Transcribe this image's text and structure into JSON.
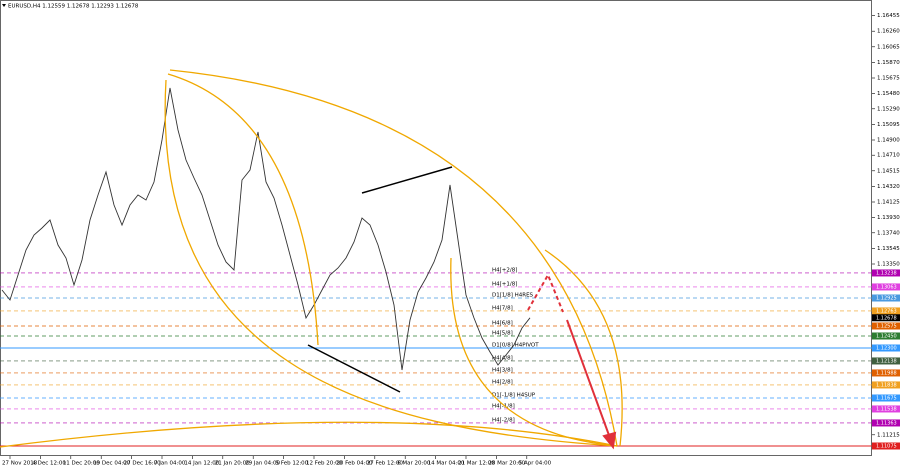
{
  "chart_data": {
    "type": "line",
    "title": "EURUSD,H4  1.12559 1.12678 1.12293 1.12678",
    "xlim": [
      -0.25,
      108.75
    ],
    "xticks": [
      {
        "value": 1,
        "label": "27 Nov 2018"
      },
      {
        "value": 4.8,
        "label": "4 Dec 12:00"
      },
      {
        "value": 8.6,
        "label": "11 Dec 20:00"
      },
      {
        "value": 12.4,
        "label": "19 Dec 04:00"
      },
      {
        "value": 16.2,
        "label": "27 Dec 16:00"
      },
      {
        "value": 20,
        "label": "7 Jan 04:00"
      },
      {
        "value": 23.8,
        "label": "14 Jan 12:00"
      },
      {
        "value": 27.6,
        "label": "21 Jan 20:00"
      },
      {
        "value": 31.4,
        "label": "29 Jan 04:00"
      },
      {
        "value": 35.2,
        "label": "5 Feb 12:00"
      },
      {
        "value": 39,
        "label": "12 Feb 20:00"
      },
      {
        "value": 42.8,
        "label": "20 Feb 04:00"
      },
      {
        "value": 46.6,
        "label": "27 Feb 12:00"
      },
      {
        "value": 50.4,
        "label": "6 Mar 20:00"
      },
      {
        "value": 54.2,
        "label": "14 Mar 04:00"
      },
      {
        "value": 58,
        "label": "21 Mar 12:00"
      },
      {
        "value": 61.8,
        "label": "28 Mar 20:00"
      },
      {
        "value": 65.6,
        "label": "5 Apr 04:00"
      }
    ],
    "ylim": [
      1.1095,
      1.1665
    ],
    "yticks": [
      1.16455,
      {
        "value": 1.1626,
        "label": "1.16260"
      },
      1.16065,
      {
        "value": 1.1587,
        "label": "1.15870"
      },
      1.15675,
      {
        "value": 1.1548,
        "label": "1.15480"
      },
      {
        "value": 1.1529,
        "label": "1.15290"
      },
      1.15095,
      {
        "value": 1.149,
        "label": "1.14900"
      },
      {
        "value": 1.1471,
        "label": "1.14710"
      },
      1.14515,
      {
        "value": 1.1432,
        "label": "1.14320"
      },
      1.14125,
      {
        "value": 1.1393,
        "label": "1.13930"
      },
      {
        "value": 1.1374,
        "label": "1.13740"
      },
      1.13545,
      {
        "value": 1.1335,
        "label": "1.13350"
      },
      1.11215
    ],
    "series": [
      {
        "color": "#333333",
        "values": [
          1.13025,
          1.129,
          1.13213,
          1.13525,
          1.13713,
          1.138,
          1.139,
          1.13588,
          1.13425,
          1.13088,
          1.134,
          1.139,
          1.14213,
          1.145,
          1.14088,
          1.13838,
          1.14088,
          1.14213,
          1.1415,
          1.14375,
          1.149,
          1.1555,
          1.15025,
          1.1465,
          1.14425,
          1.14213,
          1.139,
          1.13588,
          1.13375,
          1.13275,
          1.144,
          1.14525,
          1.15,
          1.14375,
          1.14175,
          1.13838,
          1.13463,
          1.13088,
          1.12675,
          1.12838,
          1.13025,
          1.13213,
          1.133,
          1.13425,
          1.13625,
          1.13925,
          1.13838,
          1.13588,
          1.1325,
          1.12838,
          1.12025,
          1.1265,
          1.13,
          1.13175,
          1.13375,
          1.1365,
          1.14338,
          1.1365,
          1.12963,
          1.12675,
          1.12425,
          1.1225,
          1.12088,
          1.12213,
          1.12338,
          1.1255,
          1.12678
        ]
      }
    ],
    "levels": [
      {
        "name": "H4[+2/8]",
        "value": 1.13238,
        "label": "1.13238",
        "color": "#b000b0"
      },
      {
        "name": "H4[+1/8]",
        "value": 1.13063,
        "label": "1.13063",
        "color": "#e040e0"
      },
      {
        "name": "D1[1/8] H4RES",
        "value": 1.12925,
        "label": "1.12925",
        "color": "#4a9ae0"
      },
      {
        "name": "H4[7/8]",
        "value": 1.12763,
        "label": "1.12763",
        "color": "#f0a020"
      },
      {
        "name": "H4[6/8]",
        "value": 1.12575,
        "label": "1.12575",
        "color": "#e06000"
      },
      {
        "name": "H4[5/8]",
        "value": 1.1245,
        "label": "1.12450",
        "color": "#2e7d32"
      },
      {
        "name": "D1[0/8] H4PIVOT",
        "value": 1.123,
        "label": "1.12300",
        "color": "#3399ff",
        "solid": true
      },
      {
        "name": "H4[4/8]",
        "value": 1.12138,
        "label": "1.12138",
        "color": "#406040"
      },
      {
        "name": "H4[3/8]",
        "value": 1.11988,
        "label": "1.11988",
        "color": "#e06000"
      },
      {
        "name": "H4[2/8]",
        "value": 1.11838,
        "label": "1.11838",
        "color": "#f0a020"
      },
      {
        "name": "D1[-1/8] H4SUP",
        "value": 1.11675,
        "label": "1.11675",
        "color": "#3399ff"
      },
      {
        "name": "H4[-1/8]",
        "value": 1.11538,
        "label": "1.11538",
        "color": "#e040e0"
      },
      {
        "name": "H4[-2/8]",
        "value": 1.11363,
        "label": "1.11363",
        "color": "#b000b0"
      },
      {
        "value": 1.11075,
        "label": "1.11075",
        "color": "#e02020",
        "solid": true
      }
    ],
    "current": {
      "value": 1.12678,
      "label": "1.12678"
    }
  }
}
